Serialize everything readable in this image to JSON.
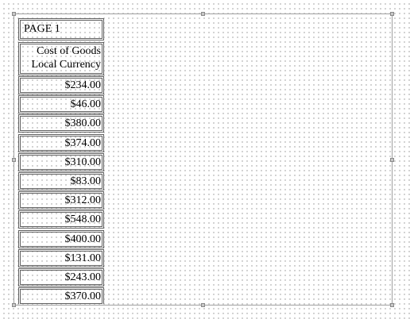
{
  "report": {
    "page_label": "PAGE 1",
    "column_header_line1": "Cost of Goods",
    "column_header_line2": "Local Currency",
    "values": [
      "$234.00",
      "$46.00",
      "$380.00",
      "$374.00",
      "$310.00",
      "$83.00",
      "$312.00",
      "$548.00",
      "$400.00",
      "$131.00",
      "$243.00",
      "$370.00"
    ]
  }
}
